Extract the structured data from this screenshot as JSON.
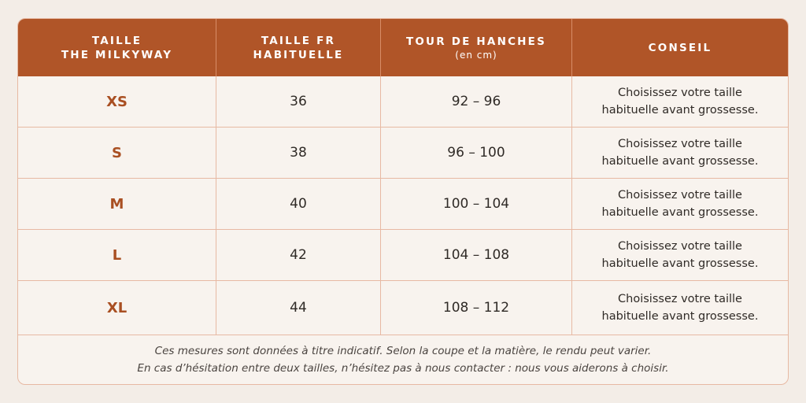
{
  "headers": [
    {
      "line1": "TAILLE",
      "line2": "THE MILKYWAY",
      "sub": ""
    },
    {
      "line1": "TAILLE FR",
      "line2": "HABITUELLE",
      "sub": ""
    },
    {
      "line1": "TOUR DE HANCHES",
      "line2": "",
      "sub": "(en cm)"
    },
    {
      "line1": "CONSEIL",
      "line2": "",
      "sub": ""
    }
  ],
  "rows": [
    {
      "size": "XS",
      "fr": "36",
      "hanches": "92 – 96",
      "conseil1": "Choisissez votre taille",
      "conseil2": "habituelle avant grossesse."
    },
    {
      "size": "S",
      "fr": "38",
      "hanches": "96 – 100",
      "conseil1": "Choisissez votre taille",
      "conseil2": "habituelle avant grossesse."
    },
    {
      "size": "M",
      "fr": "40",
      "hanches": "100 – 104",
      "conseil1": "Choisissez votre taille",
      "conseil2": "habituelle avant grossesse."
    },
    {
      "size": "L",
      "fr": "42",
      "hanches": "104 – 108",
      "conseil1": "Choisissez votre taille",
      "conseil2": "habituelle avant grossesse."
    },
    {
      "size": "XL",
      "fr": "44",
      "hanches": "108 – 112",
      "conseil1": "Choisissez votre taille",
      "conseil2": "habituelle avant grossesse."
    }
  ],
  "footnote": {
    "line1": "Ces mesures sont données à titre indicatif. Selon la coupe et la matière, le rendu peut varier.",
    "line2": "En cas d’hésitation entre deux tailles, n’hésitez pas à nous contacter : nous vous aiderons à choisir."
  },
  "colors": {
    "header_bg": "#b05528",
    "size_text": "#a94f22",
    "background": "#f3ede7",
    "border": "#e7b9a3"
  }
}
